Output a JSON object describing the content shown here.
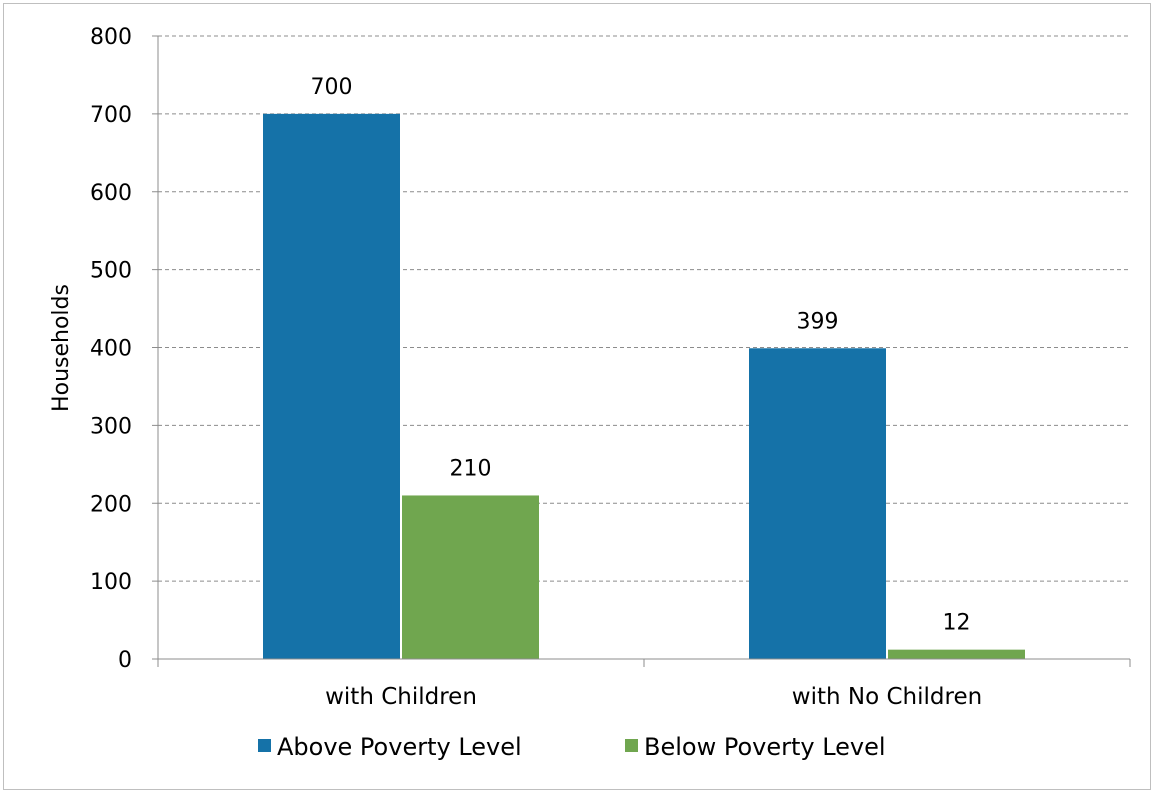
{
  "chart_data": {
    "type": "bar",
    "title": "",
    "xlabel": "",
    "ylabel": "Households",
    "ylim": [
      0,
      800
    ],
    "yticks": [
      0,
      100,
      200,
      300,
      400,
      500,
      600,
      700,
      800
    ],
    "categories": [
      "with Children",
      "with No Children"
    ],
    "series": [
      {
        "name": "Above Poverty Level",
        "color": "#1572a8",
        "values": [
          700,
          399
        ]
      },
      {
        "name": "Below Poverty Level",
        "color": "#70a64f",
        "values": [
          210,
          12
        ]
      }
    ],
    "data_labels": true,
    "grid": "horizontal dashed",
    "legend_position": "bottom"
  }
}
